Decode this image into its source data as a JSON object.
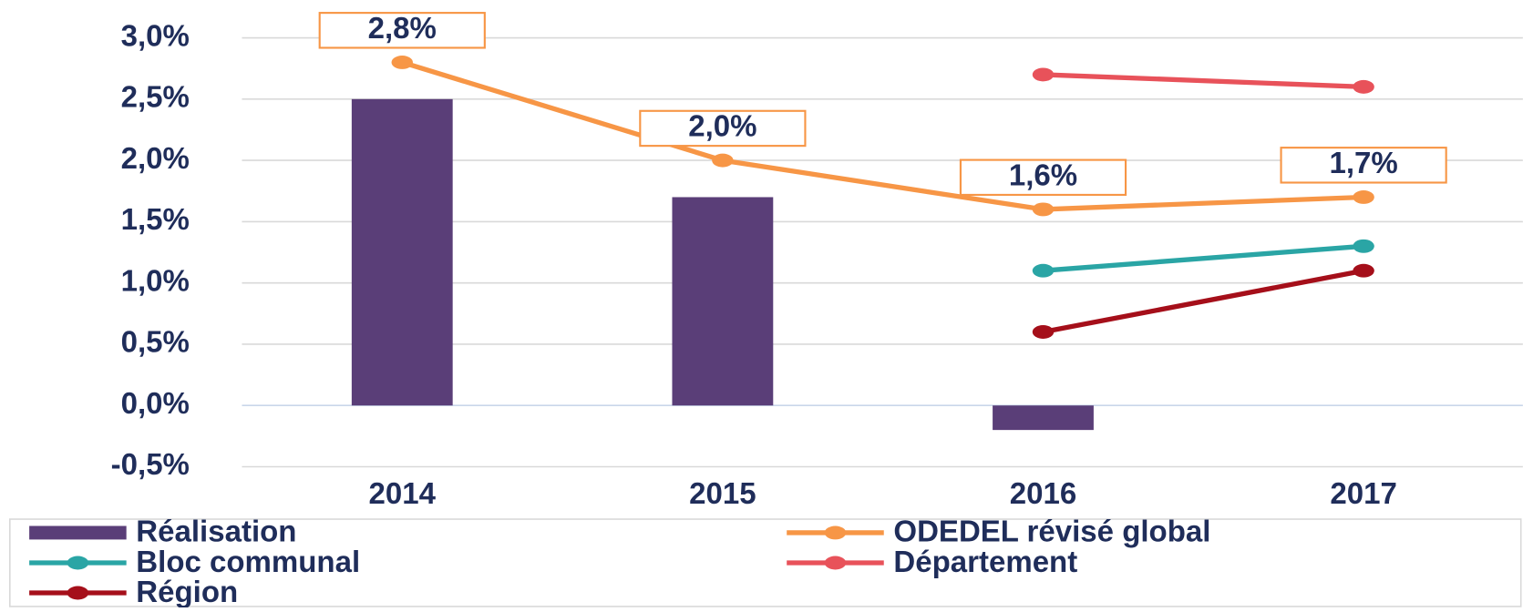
{
  "chart_data": {
    "type": "bar",
    "categories": [
      "2014",
      "2015",
      "2016",
      "2017"
    ],
    "ylim": [
      -0.5,
      3.0
    ],
    "yticks": [
      {
        "value": -0.5,
        "label": "-0,5%"
      },
      {
        "value": 0,
        "label": "0,0%"
      },
      {
        "value": 0.5,
        "label": "0,5%"
      },
      {
        "value": 1.0,
        "label": "1,0%"
      },
      {
        "value": 1.5,
        "label": "1,5%"
      },
      {
        "value": 2.0,
        "label": "2,0%"
      },
      {
        "value": 2.5,
        "label": "2,5%"
      },
      {
        "value": 3.0,
        "label": "3,0%"
      }
    ],
    "grid": true,
    "series": [
      {
        "name": "Réalisation",
        "type": "bar",
        "color": "#5a3e78",
        "values": [
          2.5,
          1.7,
          -0.2,
          null
        ]
      },
      {
        "name": "ODEDEL révisé global",
        "type": "line",
        "color": "#f79646",
        "values": [
          2.8,
          2.0,
          1.6,
          1.7
        ],
        "value_labels": [
          "2,8%",
          "2,0%",
          "1,6%",
          "1,7%"
        ]
      },
      {
        "name": "Bloc communal",
        "type": "line",
        "color": "#2aa5a5",
        "values": [
          null,
          null,
          1.1,
          1.3
        ]
      },
      {
        "name": "Département",
        "type": "line",
        "color": "#e8525a",
        "values": [
          null,
          null,
          2.7,
          2.6
        ]
      },
      {
        "name": "Région",
        "type": "line",
        "color": "#a50f1a",
        "values": [
          null,
          null,
          0.6,
          1.1
        ]
      }
    ]
  }
}
